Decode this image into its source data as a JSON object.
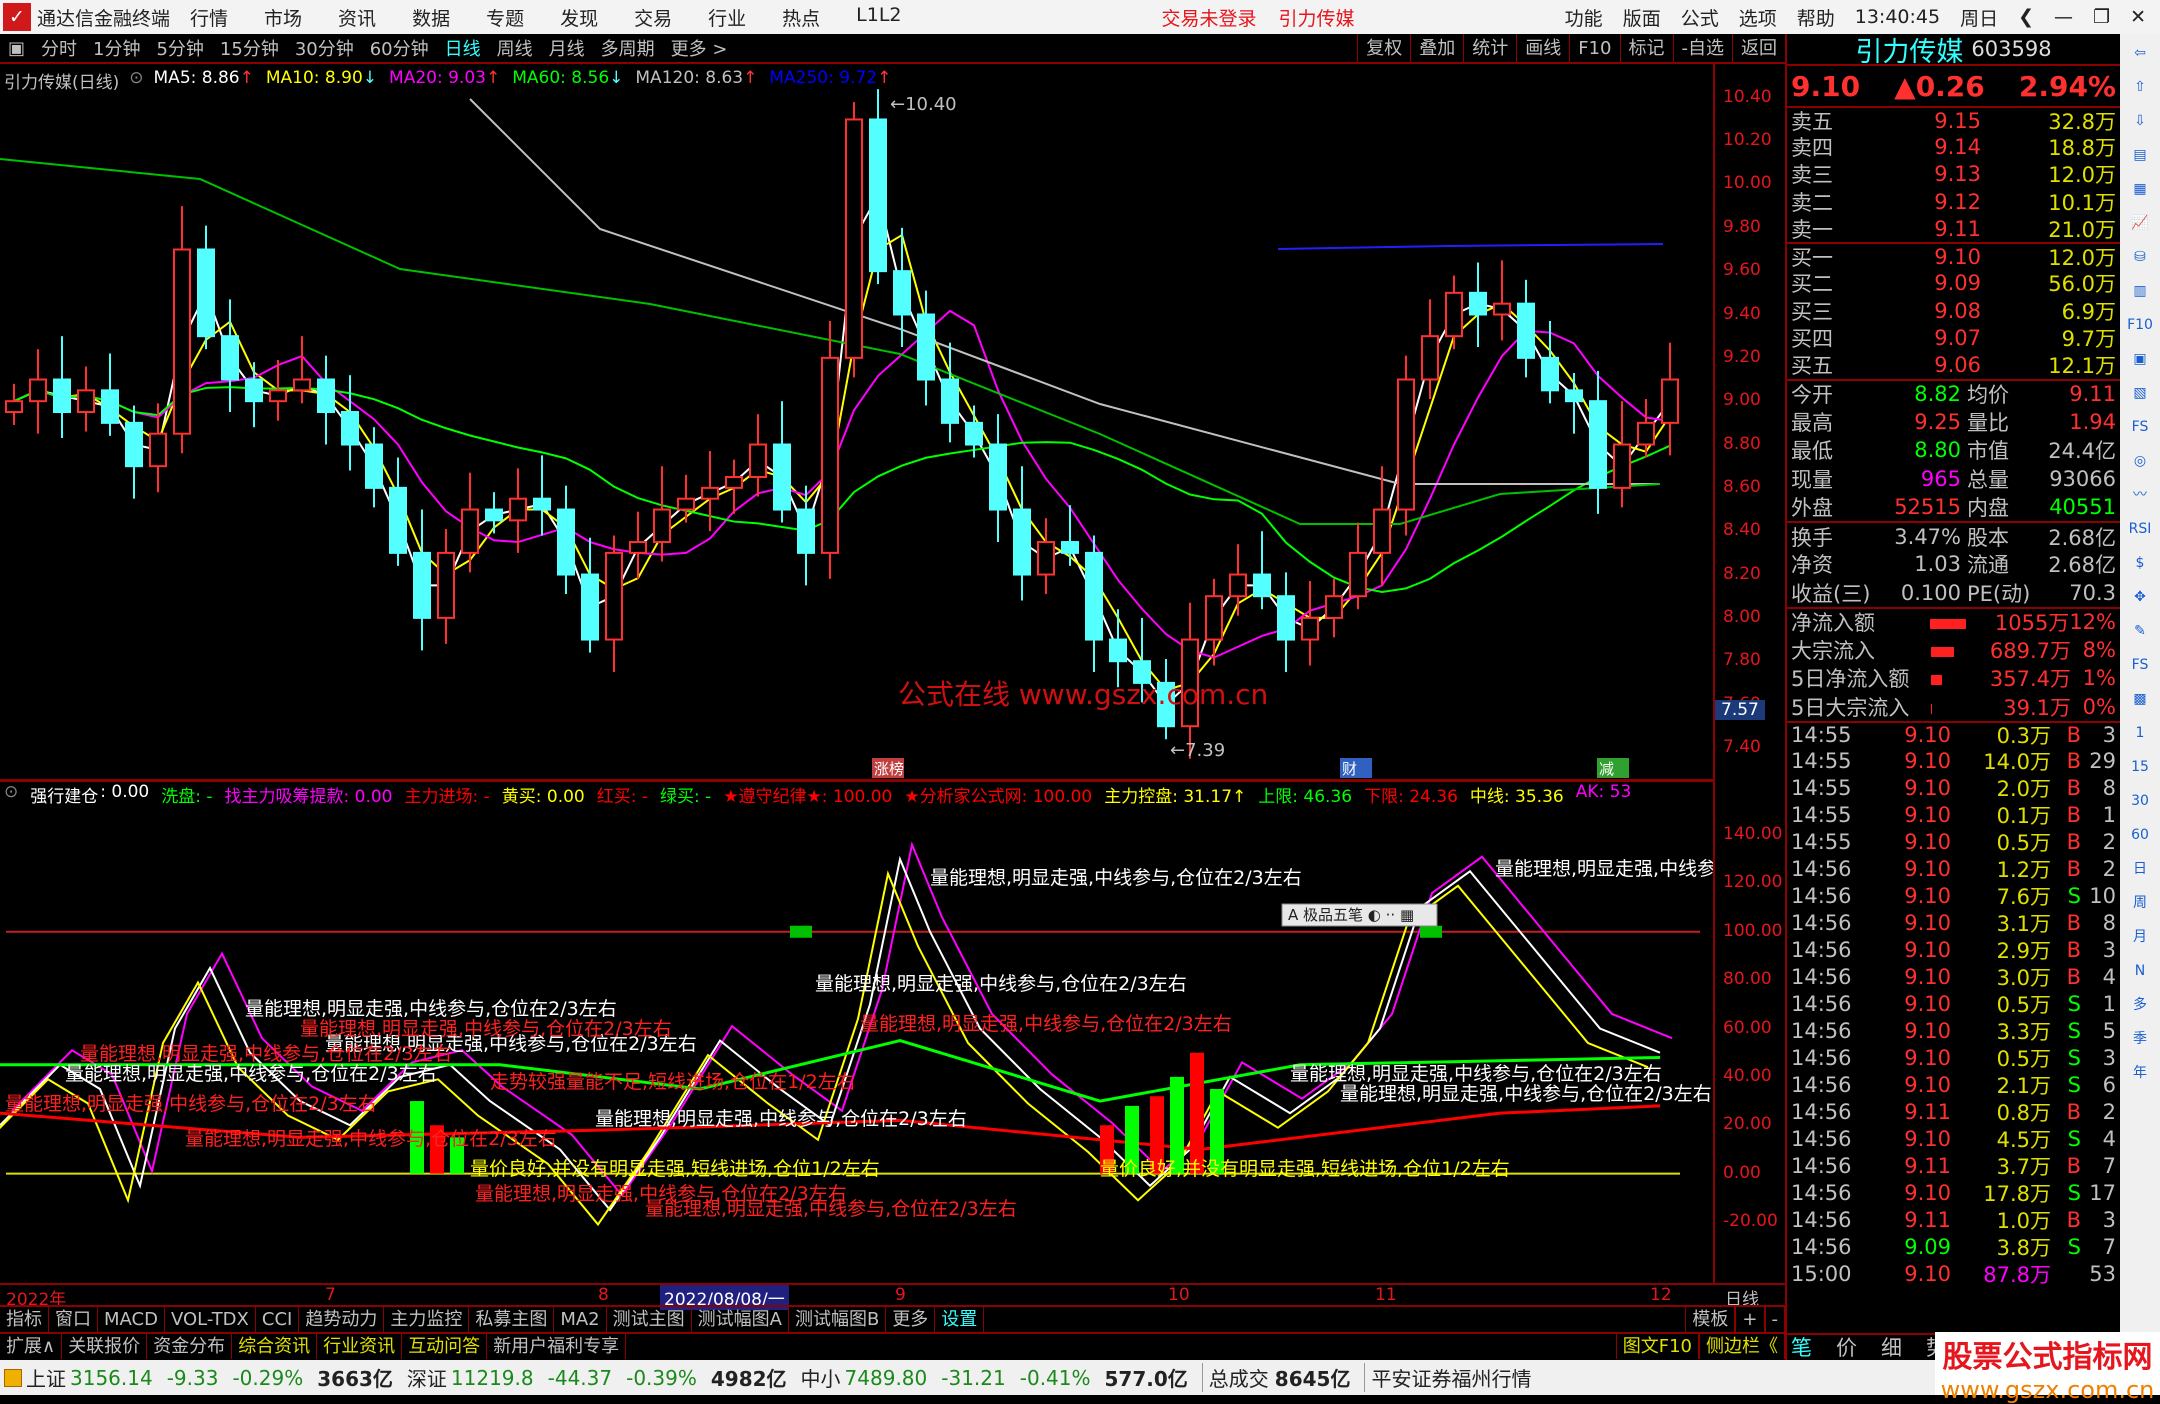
{
  "app": {
    "title": "通达信金融终端",
    "menus": [
      "行情",
      "市场",
      "资讯",
      "数据",
      "专题",
      "发现",
      "交易",
      "行业",
      "热点",
      "L1L2"
    ],
    "login_status": "交易未登录",
    "stock_link": "引力传媒",
    "right_menus": [
      "功能",
      "版面",
      "公式",
      "选项",
      "帮助"
    ],
    "time": "13:40:45",
    "weekday": "周日"
  },
  "toolbar": {
    "periods": [
      "分时",
      "1分钟",
      "5分钟",
      "15分钟",
      "30分钟",
      "60分钟",
      "日线",
      "周线",
      "月线",
      "多周期",
      "更多 >"
    ],
    "active": "日线",
    "tools": [
      "复权",
      "叠加",
      "统计",
      "画线",
      "F10",
      "标记",
      "-自选",
      "返回"
    ]
  },
  "main_chart": {
    "title": "引力传媒(日线)",
    "ma": [
      {
        "label": "MA5: 8.86",
        "color": "#ffffff",
        "dir": "↑"
      },
      {
        "label": "MA10: 8.90",
        "color": "#ffff00",
        "dir": "↓"
      },
      {
        "label": "MA20: 9.03",
        "color": "#ff00ff",
        "dir": "↑"
      },
      {
        "label": "MA60: 8.56",
        "color": "#00ff00",
        "dir": "↓"
      },
      {
        "label": "MA120: 8.63",
        "color": "#c0c0c0",
        "dir": "↑"
      },
      {
        "label": "MA250: 9.72",
        "color": "#0000ff",
        "dir": "↑"
      }
    ],
    "high_label": "10.40",
    "low_label": "7.39",
    "watermark": "公式在线  www.gszx.com.cn",
    "current_price_tag": "7.57",
    "markers": [
      "涨榜",
      "财",
      "减"
    ],
    "price_ticks": [
      "10.40",
      "10.20",
      "10.00",
      "9.80",
      "9.60",
      "9.40",
      "9.20",
      "9.00",
      "8.80",
      "8.60",
      "8.40",
      "8.20",
      "8.00",
      "7.80",
      "7.60",
      "7.40"
    ],
    "closes": [
      9.0,
      9.1,
      8.95,
      9.05,
      8.9,
      8.7,
      8.85,
      9.7,
      9.3,
      9.1,
      9.0,
      9.05,
      9.1,
      8.95,
      8.8,
      8.6,
      8.3,
      8.0,
      8.3,
      8.5,
      8.45,
      8.55,
      8.5,
      8.2,
      7.9,
      8.3,
      8.35,
      8.5,
      8.55,
      8.6,
      8.65,
      8.8,
      8.5,
      8.3,
      9.2,
      10.3,
      9.6,
      9.4,
      9.1,
      8.9,
      8.8,
      8.5,
      8.2,
      8.35,
      8.3,
      7.9,
      7.8,
      7.7,
      7.5,
      7.9,
      8.1,
      8.2,
      8.1,
      7.9,
      8.0,
      8.1,
      8.3,
      8.5,
      9.1,
      9.3,
      9.5,
      9.4,
      9.45,
      9.2,
      9.05,
      9.0,
      8.6,
      8.8,
      8.9,
      9.1
    ]
  },
  "indicator": {
    "name": "强行建仓",
    "value": ": 0.00",
    "items": [
      {
        "t": "洗盘: -",
        "c": "#00ff00"
      },
      {
        "t": "找主力吸筹提款: 0.00",
        "c": "#ff00ff"
      },
      {
        "t": "主力进场: -",
        "c": "#ff0000"
      },
      {
        "t": "黄买: 0.00",
        "c": "#ffff00"
      },
      {
        "t": "红买: -",
        "c": "#ff0000"
      },
      {
        "t": "绿买: -",
        "c": "#00ff00"
      },
      {
        "t": "★遵守纪律★: 100.00",
        "c": "#ff0000"
      },
      {
        "t": "★分析家公式网: 100.00",
        "c": "#ff0000"
      },
      {
        "t": "主力控盘: 31.17↑",
        "c": "#ffff00"
      },
      {
        "t": "上限: 46.36",
        "c": "#00ff00"
      },
      {
        "t": "下限: 24.36",
        "c": "#ff0000"
      },
      {
        "t": "中线: 35.36",
        "c": "#ffff00"
      },
      {
        "t": "AK: 53",
        "c": "#ff00ff"
      }
    ],
    "ticks": [
      "140.00",
      "120.00",
      "100.00",
      "80.00",
      "60.00",
      "40.00",
      "20.00",
      "0.00",
      "-20.00"
    ],
    "notes_white": "量能理想,明显走强,中线参与,仓位在2/3左右",
    "notes_red": "量能理想,明显走强,中线参与,仓位在2/3左右",
    "note_red2": "走势较强量能不足,短线进场,仓位在1/2左右",
    "note_yellow": "量价良好,并没有明显走强,短线进场,仓位1/2左右",
    "popup": "极品五笔"
  },
  "date_axis": {
    "labels": [
      "2022年",
      "7",
      "8",
      "9",
      "10",
      "11",
      "12"
    ],
    "cursor": "2022/08/08/一",
    "period": "日线"
  },
  "tabs": [
    "指标",
    "窗口",
    "MACD",
    "VOL-TDX",
    "CCI",
    "趋势动力",
    "主力监控",
    "私募主图",
    "MA2",
    "测试主图",
    "测试幅图A",
    "测试幅图B",
    "更多",
    "设置"
  ],
  "tabs_right": [
    "模板",
    "+",
    "-"
  ],
  "ext_tabs": [
    "扩展∧",
    "关联报价",
    "资金分布",
    "综合资讯",
    "行业资讯",
    "互动问答",
    "新用户福利专享"
  ],
  "ext_right": [
    "图文F10",
    "侧边栏《",
    "笔",
    "价",
    "细",
    "势"
  ],
  "quote": {
    "name": "引力传媒",
    "code": "603598",
    "price": "9.10",
    "change": "▲0.26",
    "pct": "2.94%",
    "asks": [
      [
        "卖五",
        "9.15",
        "32.8万"
      ],
      [
        "卖四",
        "9.14",
        "18.8万"
      ],
      [
        "卖三",
        "9.13",
        "12.0万"
      ],
      [
        "卖二",
        "9.12",
        "10.1万"
      ],
      [
        "卖一",
        "9.11",
        "21.0万"
      ]
    ],
    "bids": [
      [
        "买一",
        "9.10",
        "12.0万"
      ],
      [
        "买二",
        "9.09",
        "56.0万"
      ],
      [
        "买三",
        "9.08",
        "6.9万"
      ],
      [
        "买四",
        "9.07",
        "9.7万"
      ],
      [
        "买五",
        "9.06",
        "12.1万"
      ]
    ],
    "stats": [
      [
        "今开",
        "8.82",
        "#00ff00",
        "均价",
        "9.11",
        "#ff3030"
      ],
      [
        "最高",
        "9.25",
        "#ff3030",
        "量比",
        "1.94",
        "#ff3030"
      ],
      [
        "最低",
        "8.80",
        "#00ff00",
        "市值",
        "24.4亿",
        "#c0c0c0"
      ],
      [
        "现量",
        "965",
        "#ff00ff",
        "总量",
        "93066",
        "#c0c0c0"
      ],
      [
        "外盘",
        "52515",
        "#ff3030",
        "内盘",
        "40551",
        "#00ff00"
      ]
    ],
    "fund": [
      [
        "换手",
        "3.47%",
        "股本",
        "2.68亿"
      ],
      [
        "净资",
        "1.03",
        "流通",
        "2.68亿"
      ],
      [
        "收益(三)",
        "0.100",
        "PE(动)",
        "70.3"
      ]
    ],
    "flow": [
      [
        "净流入额",
        "1055万",
        "12%",
        1.0
      ],
      [
        "大宗流入",
        "689.7万",
        "8%",
        0.65
      ],
      [
        "5日净流入额",
        "357.4万",
        "1%",
        0.3
      ],
      [
        "5日大宗流入",
        "39.1万",
        "0%",
        0.03
      ]
    ],
    "trades": [
      [
        "14:55",
        "9.10",
        "0.3万",
        "B",
        "3"
      ],
      [
        "14:55",
        "9.10",
        "14.0万",
        "B",
        "29"
      ],
      [
        "14:55",
        "9.10",
        "2.0万",
        "B",
        "8"
      ],
      [
        "14:55",
        "9.10",
        "0.1万",
        "B",
        "1"
      ],
      [
        "14:55",
        "9.10",
        "0.5万",
        "B",
        "2"
      ],
      [
        "14:56",
        "9.10",
        "1.2万",
        "B",
        "2"
      ],
      [
        "14:56",
        "9.10",
        "7.6万",
        "S",
        "10"
      ],
      [
        "14:56",
        "9.10",
        "3.1万",
        "B",
        "8"
      ],
      [
        "14:56",
        "9.10",
        "2.9万",
        "B",
        "3"
      ],
      [
        "14:56",
        "9.10",
        "3.0万",
        "B",
        "4"
      ],
      [
        "14:56",
        "9.10",
        "0.5万",
        "S",
        "1"
      ],
      [
        "14:56",
        "9.10",
        "3.3万",
        "S",
        "5"
      ],
      [
        "14:56",
        "9.10",
        "0.5万",
        "S",
        "3"
      ],
      [
        "14:56",
        "9.10",
        "2.1万",
        "S",
        "6"
      ],
      [
        "14:56",
        "9.11",
        "0.8万",
        "B",
        "2"
      ],
      [
        "14:56",
        "9.10",
        "4.5万",
        "S",
        "4"
      ],
      [
        "14:56",
        "9.11",
        "3.7万",
        "B",
        "7"
      ],
      [
        "14:56",
        "9.10",
        "17.8万",
        "S",
        "17"
      ],
      [
        "14:56",
        "9.11",
        "1.0万",
        "B",
        "3"
      ],
      [
        "14:56",
        "9.09",
        "3.8万",
        "S",
        "7"
      ],
      [
        "15:00",
        "9.10",
        "87.8万",
        "",
        "53"
      ]
    ]
  },
  "side_icons": [
    "⇦",
    "⇧",
    "⇩",
    "▤",
    "▦",
    "📈",
    "⛁",
    "▥",
    "F10",
    "▣",
    "▧",
    "FS",
    "◎",
    "〰",
    "RSI",
    "$",
    "✥",
    "✎",
    "FS",
    "▩",
    "1",
    "15",
    "30",
    "60",
    "日",
    "周",
    "月",
    "N",
    "多",
    "季",
    "年"
  ],
  "status": {
    "sh_label": "上证",
    "sh": "3156.14",
    "sh_chg": "-9.33",
    "sh_pct": "-0.29%",
    "sh_amt": "3663亿",
    "sz_label": "深证",
    "sz": "11219.8",
    "sz_chg": "-44.37",
    "sz_pct": "-0.39%",
    "sz_amt": "4982亿",
    "zx_label": "中小",
    "zx": "7489.80",
    "zx_chg": "-31.21",
    "zx_pct": "-0.41%",
    "zx_amt": "577.0亿",
    "total_label": "总成交",
    "total": "8645亿",
    "broker": "平安证券福州行情"
  },
  "watermark": {
    "title": "股票公式指标网",
    "url": "www.gszx.com.cn"
  },
  "colors": {
    "up": "#ff3030",
    "down": "#54ffff",
    "grid": "#8b0000"
  }
}
